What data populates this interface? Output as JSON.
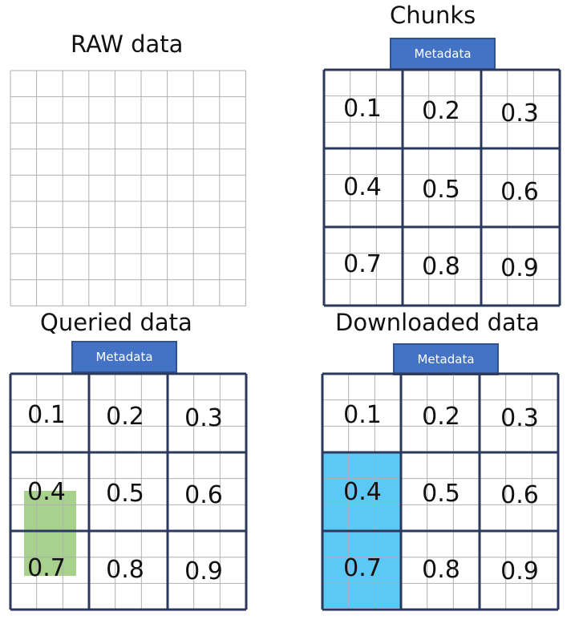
{
  "panels": {
    "raw": {
      "title": "RAW data"
    },
    "chunks": {
      "title": "Chunks",
      "metadata_label": "Metadata"
    },
    "queried": {
      "title": "Queried data",
      "metadata_label": "Metadata"
    },
    "downloaded": {
      "title": "Downloaded data",
      "metadata_label": "Metadata"
    }
  },
  "chunk_labels": [
    "0.1",
    "0.2",
    "0.3",
    "0.4",
    "0.5",
    "0.6",
    "0.7",
    "0.8",
    "0.9"
  ],
  "colors": {
    "fine_grid": "#b0b0b0",
    "chunk_border": "#2b3a5c",
    "metadata_fill": "#4472c4",
    "query_highlight": "#a9d18e",
    "download_highlight": "#5bc8f5"
  }
}
